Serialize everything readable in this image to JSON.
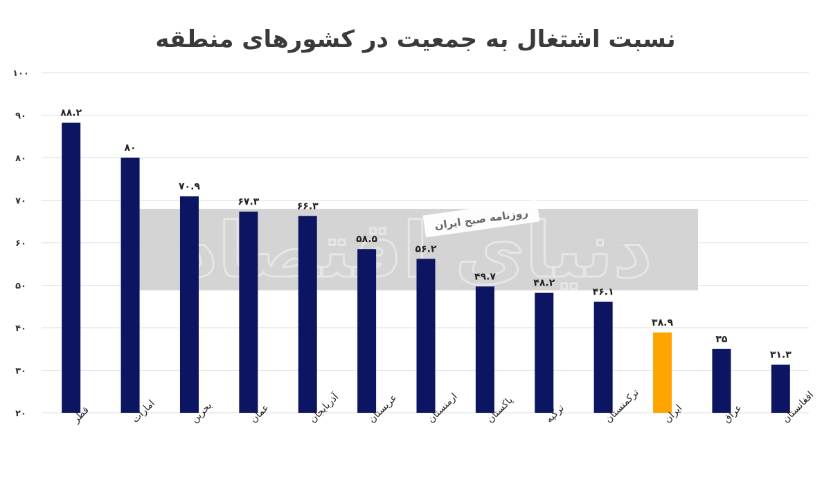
{
  "chart_data": {
    "type": "bar",
    "title": "نسبت اشتغال به جمعیت در کشورهای منطقه",
    "categories": [
      "قطر",
      "امارات",
      "بحرین",
      "عمان",
      "آذربایجان",
      "عربستان",
      "ارمنستان",
      "پاکستان",
      "ترکیه",
      "ترکمنستان",
      "ایران",
      "عراق",
      "افغانستان"
    ],
    "values": [
      88.2,
      80,
      70.9,
      67.3,
      66.3,
      58.5,
      56.2,
      49.7,
      48.2,
      46.1,
      38.9,
      35,
      31.3
    ],
    "value_labels": [
      "۸۸.۲",
      "۸۰",
      "۷۰.۹",
      "۶۷.۳",
      "۶۶.۳",
      "۵۸.۵",
      "۵۶.۲",
      "۴۹.۷",
      "۴۸.۲",
      "۴۶.۱",
      "۳۸.۹",
      "۳۵",
      "۳۱.۳"
    ],
    "highlight_index": 10,
    "ylim": [
      20,
      100
    ],
    "yticks": [
      20,
      30,
      40,
      50,
      60,
      70,
      80,
      90,
      100
    ],
    "ytick_labels": [
      "۲۰",
      "۳۰",
      "۴۰",
      "۵۰",
      "۶۰",
      "۷۰",
      "۸۰",
      "۹۰",
      "۱۰۰"
    ],
    "grid": true,
    "legend": "none",
    "colors": {
      "bar": "#0b1561",
      "highlight": "#ffa500",
      "grid": "#dddddd"
    }
  },
  "watermark": {
    "banner_text": "روزنامه صبح ایران",
    "brand_text": "دنیای اقتصاد"
  }
}
